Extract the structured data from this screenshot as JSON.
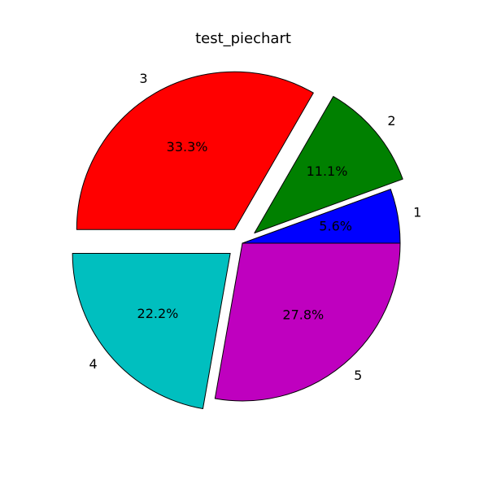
{
  "chart_data": {
    "type": "pie",
    "title": "test_piechart",
    "start_angle_deg": 0,
    "direction": "counterclockwise",
    "slices": [
      {
        "label": "1",
        "value": 1,
        "percent_label": "5.6%",
        "color": "#0000ff",
        "exploded": false
      },
      {
        "label": "2",
        "value": 2,
        "percent_label": "11.1%",
        "color": "#008000",
        "exploded": true
      },
      {
        "label": "3",
        "value": 6,
        "percent_label": "33.3%",
        "color": "#ff0000",
        "exploded": true
      },
      {
        "label": "4",
        "value": 4,
        "percent_label": "22.2%",
        "color": "#00bfbf",
        "exploded": true
      },
      {
        "label": "5",
        "value": 5,
        "percent_label": "27.8%",
        "color": "#bf00bf",
        "exploded": false
      }
    ]
  }
}
